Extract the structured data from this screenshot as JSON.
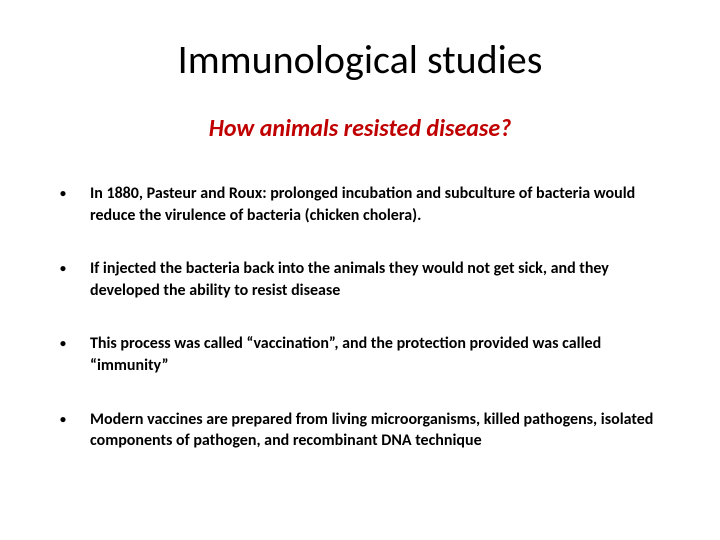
{
  "title": "Immunological studies",
  "subtitle": "How animals resisted disease?",
  "colors": {
    "title_color": "#000000",
    "subtitle_color": "#c00000",
    "text_color": "#000000",
    "background": "#ffffff"
  },
  "typography": {
    "title_fontsize": 40,
    "title_weight": 400,
    "subtitle_fontsize": 24,
    "subtitle_weight": 700,
    "subtitle_italic": true,
    "body_fontsize": 16,
    "body_weight": 700
  },
  "bullets": [
    {
      "text": "In 1880, Pasteur and Roux: prolonged incubation and subculture of bacteria would reduce the virulence of bacteria (chicken cholera)."
    },
    {
      "text": "If injected the bacteria back into the animals they would not get sick, and they developed the ability to resist disease"
    },
    {
      "text": "This process was called “vaccination”, and the protection provided was called “immunity”"
    },
    {
      "text": "Modern vaccines are prepared from living microorganisms, killed pathogens, isolated components of pathogen, and recombinant DNA technique"
    }
  ],
  "bullet_marker": "•"
}
